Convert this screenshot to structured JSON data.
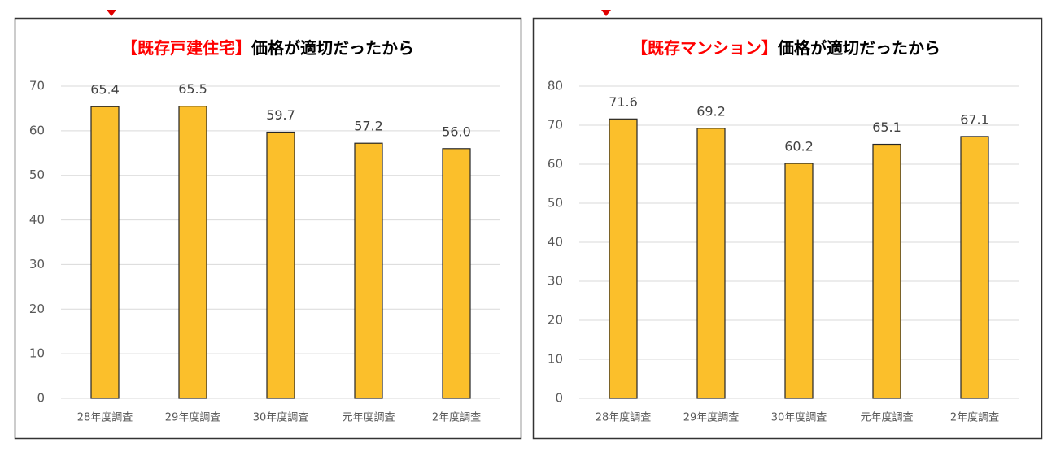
{
  "chart_data": [
    {
      "type": "bar",
      "title_highlight": "【既存戸建住宅】",
      "title": "価格が適切だったから",
      "categories": [
        "28年度調査",
        "29年度調査",
        "30年度調査",
        "元年度調査",
        "2年度調査"
      ],
      "values": [
        65.4,
        65.5,
        59.7,
        57.2,
        56.0
      ],
      "value_labels": [
        "65.4",
        "65.5",
        "59.7",
        "57.2",
        "56.0"
      ],
      "color": "#fbbf2b",
      "ylim": [
        0,
        70
      ],
      "yticks": [
        0,
        10,
        20,
        30,
        40,
        50,
        60,
        70
      ],
      "grid": true
    },
    {
      "type": "bar",
      "title_highlight": "【既存マンション】",
      "title": "価格が適切だったから",
      "categories": [
        "28年度調査",
        "29年度調査",
        "30年度調査",
        "元年度調査",
        "2年度調査"
      ],
      "values": [
        71.6,
        69.2,
        60.2,
        65.1,
        67.1
      ],
      "value_labels": [
        "71.6",
        "69.2",
        "60.2",
        "65.1",
        "67.1"
      ],
      "color": "#fbbf2b",
      "ylim": [
        0,
        80
      ],
      "yticks": [
        0,
        10,
        20,
        30,
        40,
        50,
        60,
        70,
        80
      ],
      "grid": true
    }
  ]
}
